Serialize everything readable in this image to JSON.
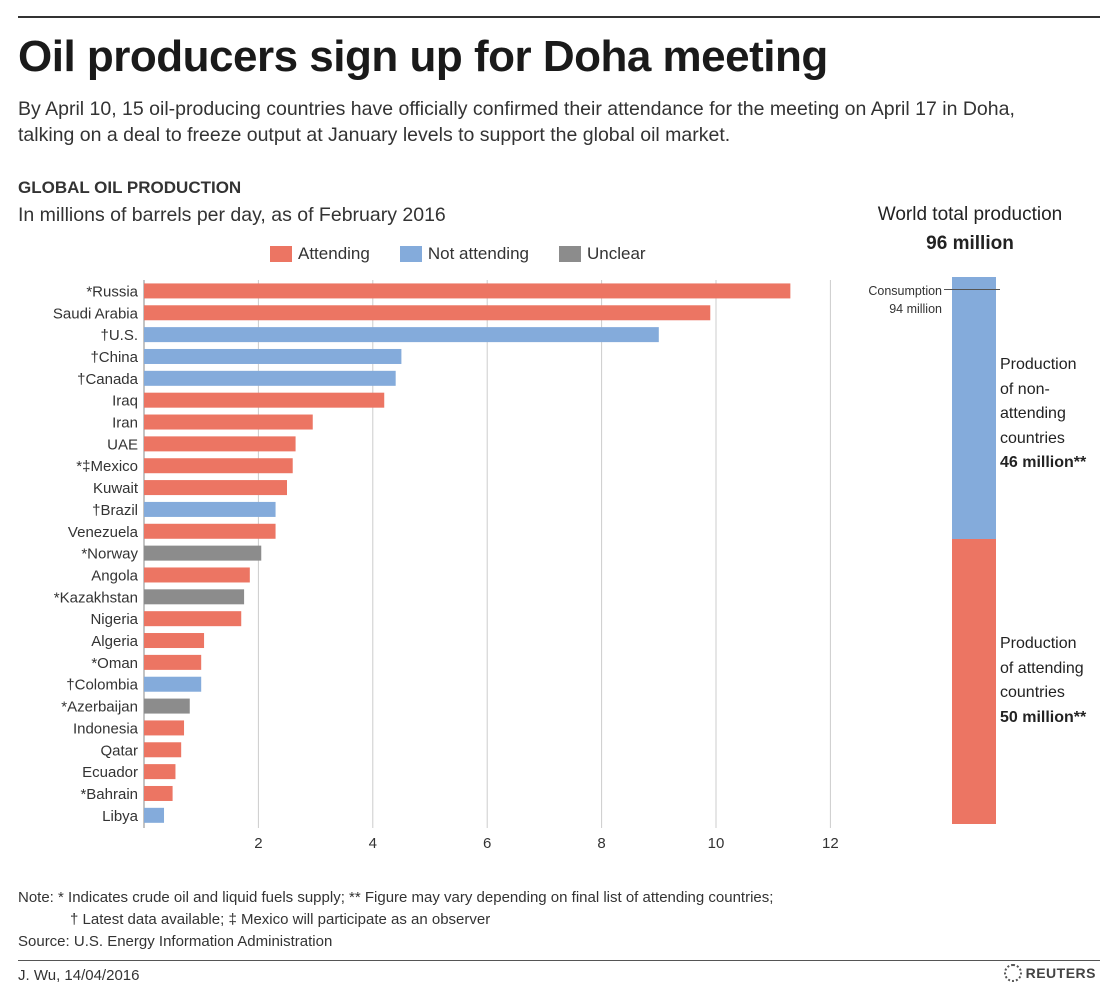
{
  "title": "Oil producers sign up for Doha meeting",
  "subtitle": "By April 10, 15 oil-producing countries have officially confirmed their attendance for the meeting on April 17 in Doha, talking on a deal to freeze output at January levels to support the global oil market.",
  "section_title": "GLOBAL OIL PRODUCTION",
  "units": "In millions of barrels per day, as of February 2016",
  "colors": {
    "attending": "#ec7563",
    "not_attending": "#84abdb",
    "unclear": "#8c8c8c",
    "grid": "#cccccc"
  },
  "legend": [
    {
      "key": "attending",
      "label": "Attending"
    },
    {
      "key": "not_attending",
      "label": "Not attending"
    },
    {
      "key": "unclear",
      "label": "Unclear"
    }
  ],
  "chart_data": {
    "type": "bar",
    "orientation": "horizontal",
    "title": "GLOBAL OIL PRODUCTION",
    "xlabel": "In millions of barrels per day, as of February 2016",
    "xlim": [
      0,
      12
    ],
    "xticks": [
      2,
      4,
      6,
      8,
      10,
      12
    ],
    "grid": true,
    "categories": [
      "*Russia",
      "Saudi Arabia",
      "†U.S.",
      "†China",
      "†Canada",
      "Iraq",
      "Iran",
      "UAE",
      "*‡Mexico",
      "Kuwait",
      "†Brazil",
      "Venezuela",
      "*Norway",
      "Angola",
      "*Kazakhstan",
      "Nigeria",
      "Algeria",
      "*Oman",
      "†Colombia",
      "*Azerbaijan",
      "Indonesia",
      "Qatar",
      "Ecuador",
      "*Bahrain",
      "Libya"
    ],
    "values": [
      11.3,
      9.9,
      9.0,
      4.5,
      4.4,
      4.2,
      2.95,
      2.65,
      2.6,
      2.5,
      2.3,
      2.3,
      2.05,
      1.85,
      1.75,
      1.7,
      1.05,
      1.0,
      1.0,
      0.8,
      0.7,
      0.65,
      0.55,
      0.5,
      0.35
    ],
    "status": [
      "attending",
      "attending",
      "not_attending",
      "not_attending",
      "not_attending",
      "attending",
      "attending",
      "attending",
      "attending",
      "attending",
      "not_attending",
      "attending",
      "unclear",
      "attending",
      "unclear",
      "attending",
      "attending",
      "attending",
      "not_attending",
      "unclear",
      "attending",
      "attending",
      "attending",
      "attending",
      "not_attending"
    ]
  },
  "world_total": {
    "label": "World total production",
    "value_label": "96 million",
    "total": 96,
    "consumption": 94,
    "consumption_label_1": "Consumption",
    "consumption_label_2": "94 million",
    "non_attending": {
      "value": 46,
      "lines": [
        "Production",
        "of non-",
        "attending",
        "countries"
      ],
      "amount": "46 million**"
    },
    "attending": {
      "value": 50,
      "lines": [
        "Production",
        "of attending",
        "countries"
      ],
      "amount": "50 million**"
    }
  },
  "notes": {
    "line1": "Note: * Indicates crude oil and liquid fuels supply;     ** Figure may vary depending on final list of attending countries;",
    "line2": "† Latest data available;     ‡ Mexico will participate as an observer",
    "source": "Source: U.S. Energy Information Administration"
  },
  "credit": "J. Wu,  14/04/2016",
  "logo": "REUTERS"
}
